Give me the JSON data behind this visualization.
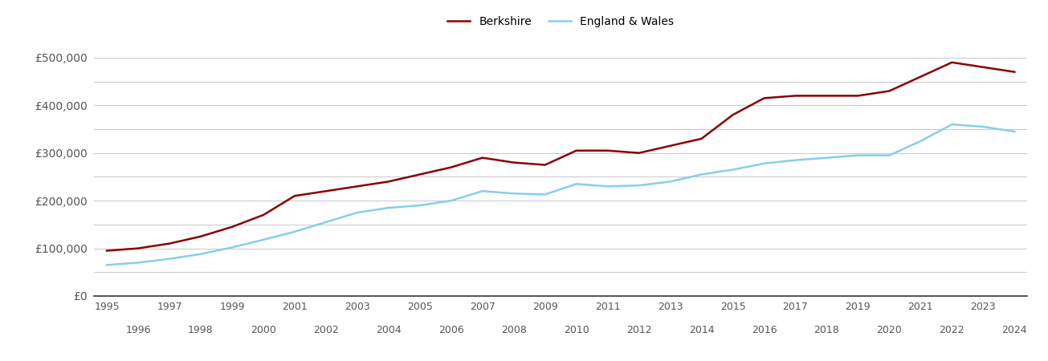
{
  "berkshire": {
    "years": [
      1995,
      1996,
      1997,
      1998,
      1999,
      2000,
      2001,
      2002,
      2003,
      2004,
      2005,
      2006,
      2007,
      2008,
      2009,
      2010,
      2011,
      2012,
      2013,
      2014,
      2015,
      2016,
      2017,
      2018,
      2019,
      2020,
      2021,
      2022,
      2023,
      2024
    ],
    "values": [
      95000,
      100000,
      110000,
      125000,
      145000,
      170000,
      210000,
      220000,
      230000,
      240000,
      255000,
      270000,
      290000,
      280000,
      275000,
      305000,
      305000,
      300000,
      315000,
      330000,
      380000,
      415000,
      420000,
      420000,
      420000,
      430000,
      460000,
      490000,
      480000,
      470000
    ]
  },
  "england_wales": {
    "years": [
      1995,
      1996,
      1997,
      1998,
      1999,
      2000,
      2001,
      2002,
      2003,
      2004,
      2005,
      2006,
      2007,
      2008,
      2009,
      2010,
      2011,
      2012,
      2013,
      2014,
      2015,
      2016,
      2017,
      2018,
      2019,
      2020,
      2021,
      2022,
      2023,
      2024
    ],
    "values": [
      65000,
      70000,
      78000,
      88000,
      102000,
      118000,
      135000,
      155000,
      175000,
      185000,
      190000,
      200000,
      220000,
      215000,
      213000,
      235000,
      230000,
      232000,
      240000,
      255000,
      265000,
      278000,
      285000,
      290000,
      295000,
      295000,
      325000,
      360000,
      355000,
      345000
    ]
  },
  "berkshire_color": "#8b0000",
  "england_wales_color": "#87ceeb",
  "background_color": "#ffffff",
  "grid_color": "#cccccc",
  "ytick_labels": [
    "£0",
    "£100,000",
    "£200,000",
    "£300,000",
    "£400,000",
    "£500,000"
  ],
  "ytick_values": [
    0,
    100000,
    200000,
    300000,
    400000,
    500000
  ],
  "minor_ytick_values": [
    50000,
    150000,
    250000,
    350000,
    450000
  ],
  "ylim": [
    0,
    530000
  ],
  "xlim": [
    1994.6,
    2024.4
  ],
  "legend_labels": [
    "Berkshire",
    "England & Wales"
  ],
  "line_width": 1.8
}
